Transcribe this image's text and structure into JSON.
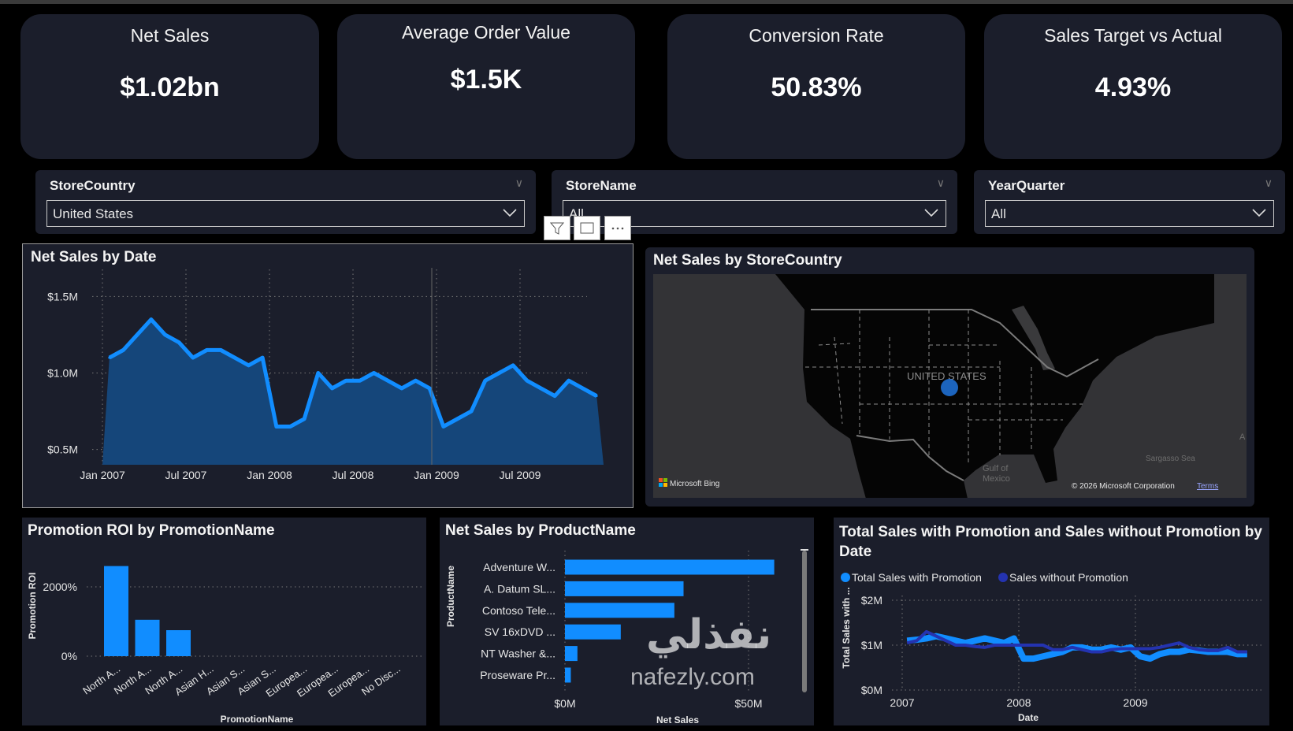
{
  "kpis": [
    {
      "title": "Net Sales",
      "value": "$1.02bn"
    },
    {
      "title": "Average Order Value",
      "value": "$1.5K"
    },
    {
      "title": "Conversion Rate",
      "value": "50.83%"
    },
    {
      "title": "Sales Target vs Actual",
      "value": "4.93%"
    }
  ],
  "slicers": [
    {
      "title": "StoreCountry",
      "value": "United States"
    },
    {
      "title": "StoreName",
      "value": "All"
    },
    {
      "title": "YearQuarter",
      "value": "All"
    }
  ],
  "colors": {
    "accent": "#118DFF",
    "area_fill": "#15467a",
    "dark_series": "#2433b0",
    "panel": "#1b1e2b"
  },
  "map": {
    "title": "Net Sales by StoreCountry",
    "country_label": "UNITED STATES",
    "gulf_label_1": "Gulf of",
    "gulf_label_2": "Mexico",
    "sea_label": "Sargasso Sea",
    "edge_label": "A",
    "provider": "Microsoft Bing",
    "copyright": "© 2026 Microsoft Corporation",
    "terms": "Terms"
  },
  "watermark": {
    "arabic": "نفذلي",
    "latin": "nafezly.com"
  },
  "chart_data": [
    {
      "type": "area",
      "title": "Net Sales by Date",
      "xlabel": "",
      "ylabel": "",
      "x_ticks": [
        "Jan 2007",
        "Jul 2007",
        "Jan 2008",
        "Jul 2008",
        "Jan 2009",
        "Jul 2009"
      ],
      "y_ticks": [
        "$0.5M",
        "$1.0M",
        "$1.5M"
      ],
      "y_tick_values": [
        0.5,
        1.0,
        1.5
      ],
      "ylim": [
        0.4,
        1.6
      ],
      "y_unit": "$M",
      "x": [
        "2007-01",
        "2007-02",
        "2007-03",
        "2007-04",
        "2007-05",
        "2007-06",
        "2007-07",
        "2007-08",
        "2007-09",
        "2007-10",
        "2007-11",
        "2007-12",
        "2008-01",
        "2008-02",
        "2008-03",
        "2008-04",
        "2008-05",
        "2008-06",
        "2008-07",
        "2008-08",
        "2008-09",
        "2008-10",
        "2008-11",
        "2008-12",
        "2009-01",
        "2009-02",
        "2009-03",
        "2009-04",
        "2009-05",
        "2009-06",
        "2009-07",
        "2009-08",
        "2009-09",
        "2009-10",
        "2009-11",
        "2009-12"
      ],
      "values": [
        1.1,
        1.15,
        1.25,
        1.35,
        1.25,
        1.2,
        1.1,
        1.15,
        1.15,
        1.1,
        1.05,
        1.1,
        0.65,
        0.65,
        0.7,
        1.0,
        0.9,
        0.95,
        0.95,
        1.0,
        0.95,
        0.9,
        0.95,
        0.9,
        0.65,
        0.7,
        0.75,
        0.95,
        1.0,
        1.05,
        0.95,
        0.9,
        0.85,
        0.95,
        0.9,
        0.85
      ],
      "grid": true
    },
    {
      "type": "bar",
      "title": "Promotion ROI by PromotionName",
      "xlabel": "PromotionName",
      "ylabel": "Promotion ROI",
      "categories": [
        "North A...",
        "North A...",
        "North A...",
        "Asian H...",
        "Asian S...",
        "Asian S...",
        "Europea...",
        "Europea...",
        "Europea...",
        "No Disc..."
      ],
      "values": [
        2600,
        1050,
        750,
        0,
        0,
        0,
        0,
        0,
        0,
        0
      ],
      "y_ticks": [
        "0%",
        "2000%"
      ],
      "y_tick_values": [
        0,
        2000
      ],
      "ylim": [
        0,
        2800
      ],
      "grid": true
    },
    {
      "type": "bar",
      "orientation": "horizontal",
      "title": "Net Sales by ProductName",
      "xlabel": "Net Sales",
      "ylabel": "ProductName",
      "categories": [
        "Adventure W...",
        "A. Datum SL...",
        "Contoso Tele...",
        "SV 16xDVD ...",
        "NT Washer &...",
        "Proseware Pr..."
      ],
      "values": [
        57,
        32.3,
        29.8,
        15.2,
        3.4,
        1.6
      ],
      "x_ticks": [
        "$0M",
        "$50M"
      ],
      "x_tick_values": [
        0,
        50
      ],
      "unit": "$M",
      "grid": true
    },
    {
      "type": "line",
      "title": "Total Sales with Promotion and Sales without Promotion by Date",
      "xlabel": "Date",
      "ylabel": "Total Sales with ...",
      "legend": "top-left",
      "x_ticks": [
        "2007",
        "2008",
        "2009"
      ],
      "y_ticks": [
        "$0M",
        "$1M",
        "$2M"
      ],
      "y_tick_values": [
        0,
        1,
        2
      ],
      "ylim": [
        0,
        2
      ],
      "y_unit": "$M",
      "x": [
        "2007-01",
        "2007-02",
        "2007-03",
        "2007-04",
        "2007-05",
        "2007-06",
        "2007-07",
        "2007-08",
        "2007-09",
        "2007-10",
        "2007-11",
        "2007-12",
        "2008-01",
        "2008-02",
        "2008-03",
        "2008-04",
        "2008-05",
        "2008-06",
        "2008-07",
        "2008-08",
        "2008-09",
        "2008-10",
        "2008-11",
        "2008-12",
        "2009-01",
        "2009-02",
        "2009-03",
        "2009-04",
        "2009-05",
        "2009-06",
        "2009-07",
        "2009-08",
        "2009-09",
        "2009-10",
        "2009-11",
        "2009-12"
      ],
      "series": [
        {
          "name": "Total Sales with Promotion",
          "color": "#118DFF",
          "values": [
            1.1,
            1.12,
            1.15,
            1.2,
            1.15,
            1.1,
            1.05,
            1.1,
            1.15,
            1.1,
            1.05,
            1.15,
            0.7,
            0.7,
            0.75,
            0.8,
            0.85,
            0.95,
            0.95,
            0.9,
            0.9,
            0.95,
            0.9,
            0.95,
            0.75,
            0.7,
            0.8,
            0.85,
            0.85,
            0.9,
            0.88,
            0.85,
            0.85,
            0.85,
            0.8,
            0.8
          ]
        },
        {
          "name": "Sales without Promotion",
          "color": "#2433b0",
          "values": [
            1.05,
            1.1,
            1.3,
            1.2,
            1.1,
            1.0,
            1.0,
            0.97,
            0.95,
            1.0,
            1.0,
            1.0,
            1.0,
            1.0,
            1.0,
            0.9,
            0.9,
            0.95,
            0.9,
            0.85,
            0.85,
            0.9,
            0.92,
            0.92,
            0.92,
            0.92,
            0.95,
            1.0,
            1.05,
            0.95,
            0.9,
            0.88,
            0.88,
            0.95,
            0.85,
            0.85
          ]
        }
      ],
      "grid": true
    }
  ]
}
